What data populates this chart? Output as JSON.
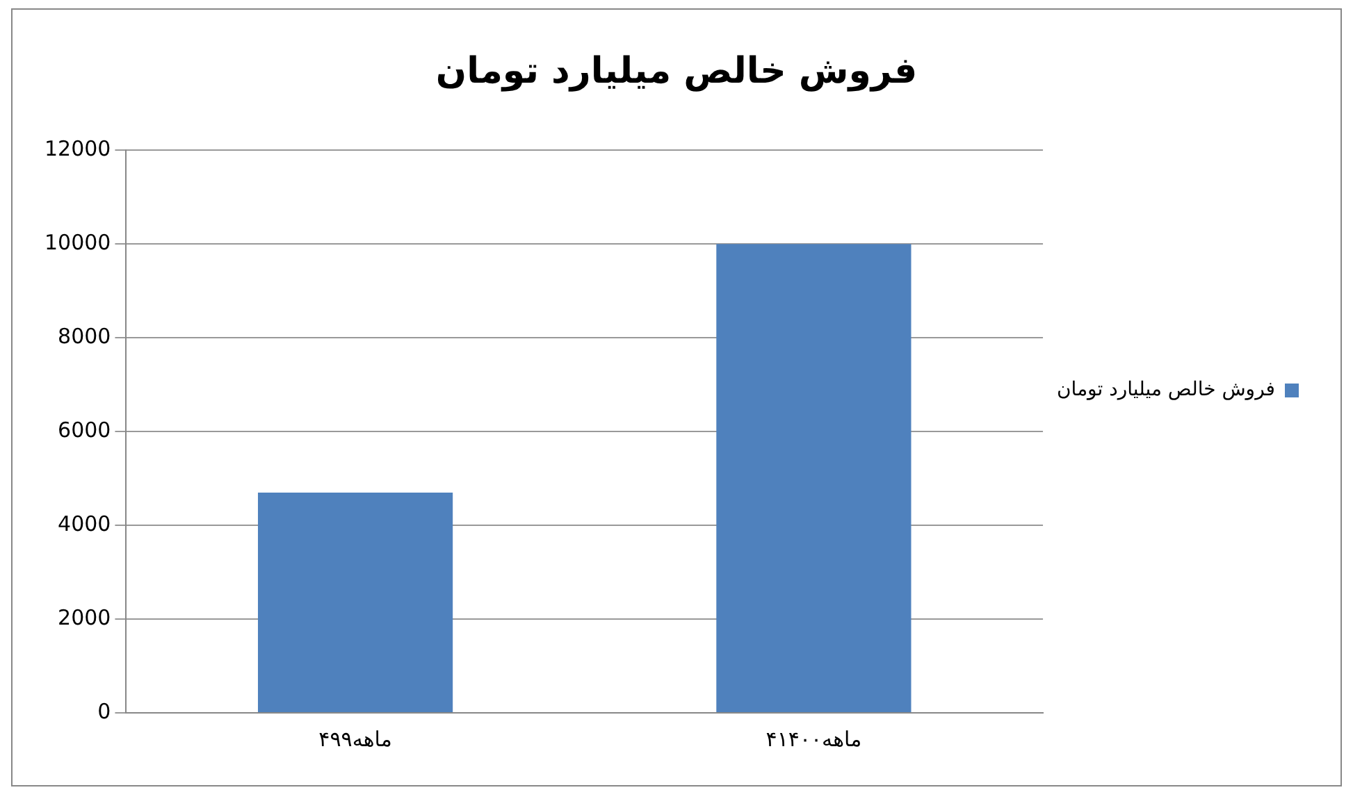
{
  "chart_data": {
    "type": "bar",
    "title": "فروش خالص میلیارد تومان",
    "categories": [
      "۴ماهه۹۹",
      "۴ماهه۱۴۰۰"
    ],
    "series": [
      {
        "name": "فروش خالص میلیارد تومان",
        "color": "#4f81bd",
        "values": [
          4700,
          10000
        ]
      }
    ],
    "ylim": [
      0,
      12000
    ],
    "yticks": [
      0,
      2000,
      4000,
      6000,
      8000,
      10000,
      12000
    ],
    "grid": "y",
    "legend": "right"
  }
}
